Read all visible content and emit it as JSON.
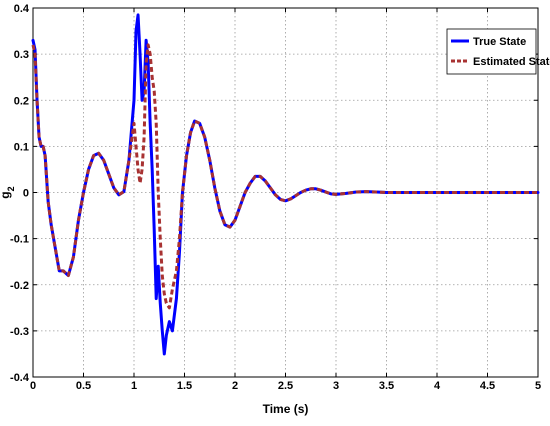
{
  "chart_data": {
    "type": "line",
    "title": "",
    "xlabel": "Time (s)",
    "ylabel": "g",
    "ylabel_subscript": "2",
    "xlim": [
      0,
      5
    ],
    "ylim": [
      -0.4,
      0.4
    ],
    "xticks": [
      "0",
      "0.5",
      "1",
      "1.5",
      "2",
      "2.5",
      "3",
      "3.5",
      "4",
      "4.5",
      "5"
    ],
    "xtick_values": [
      0,
      0.5,
      1,
      1.5,
      2,
      2.5,
      3,
      3.5,
      4,
      4.5,
      5
    ],
    "yticks": [
      "0.4",
      "0.3",
      "0.2",
      "0.1",
      "0",
      "-0.1",
      "-0.2",
      "-0.3",
      "-0.4"
    ],
    "ytick_values": [
      0.4,
      0.3,
      0.2,
      0.1,
      0,
      -0.1,
      -0.2,
      -0.3,
      -0.4
    ],
    "grid": true,
    "legend_position": "top-right",
    "series": [
      {
        "name": "True State",
        "color": "#0000ff",
        "style": "solid",
        "x": [
          0,
          0.02,
          0.04,
          0.06,
          0.08,
          0.1,
          0.12,
          0.15,
          0.18,
          0.22,
          0.26,
          0.3,
          0.35,
          0.4,
          0.45,
          0.5,
          0.55,
          0.6,
          0.65,
          0.7,
          0.75,
          0.8,
          0.85,
          0.9,
          0.95,
          1.0,
          1.02,
          1.04,
          1.06,
          1.08,
          1.1,
          1.12,
          1.14,
          1.16,
          1.18,
          1.2,
          1.22,
          1.24,
          1.26,
          1.28,
          1.3,
          1.32,
          1.35,
          1.38,
          1.42,
          1.45,
          1.48,
          1.52,
          1.56,
          1.6,
          1.65,
          1.7,
          1.75,
          1.8,
          1.85,
          1.9,
          1.95,
          2.0,
          2.05,
          2.1,
          2.15,
          2.2,
          2.25,
          2.3,
          2.35,
          2.4,
          2.45,
          2.5,
          2.55,
          2.6,
          2.65,
          2.7,
          2.75,
          2.8,
          2.85,
          2.9,
          2.95,
          3.0,
          3.1,
          3.2,
          3.3,
          3.4,
          3.5,
          3.6,
          3.7,
          3.8,
          3.9,
          4.0,
          4.1,
          4.2,
          4.3,
          4.4,
          4.5,
          4.6,
          4.7,
          4.8,
          4.9,
          5.0
        ],
        "y": [
          0.33,
          0.31,
          0.2,
          0.12,
          0.1,
          0.1,
          0.08,
          -0.02,
          -0.07,
          -0.12,
          -0.17,
          -0.17,
          -0.18,
          -0.14,
          -0.06,
          0.0,
          0.05,
          0.08,
          0.085,
          0.07,
          0.04,
          0.01,
          -0.005,
          0.002,
          0.07,
          0.2,
          0.35,
          0.385,
          0.3,
          0.2,
          0.22,
          0.33,
          0.28,
          0.15,
          0.05,
          -0.08,
          -0.23,
          -0.16,
          -0.24,
          -0.3,
          -0.35,
          -0.31,
          -0.28,
          -0.3,
          -0.23,
          -0.13,
          0.0,
          0.08,
          0.13,
          0.155,
          0.15,
          0.12,
          0.07,
          0.01,
          -0.04,
          -0.07,
          -0.075,
          -0.06,
          -0.03,
          0.0,
          0.02,
          0.035,
          0.035,
          0.025,
          0.01,
          -0.005,
          -0.015,
          -0.018,
          -0.014,
          -0.007,
          0.0,
          0.005,
          0.008,
          0.008,
          0.005,
          0.001,
          -0.003,
          -0.004,
          -0.002,
          0.001,
          0.002,
          0.001,
          0.0,
          0.0,
          0.0,
          0.0,
          0.0,
          0.0,
          0.0,
          0.0,
          0.0,
          0.0,
          0.0,
          0.0,
          0.0,
          0.0,
          0.0,
          0.0
        ]
      },
      {
        "name": "Estimated State",
        "color": "#a83232",
        "style": "dashed",
        "x": [
          0,
          0.02,
          0.04,
          0.06,
          0.08,
          0.1,
          0.12,
          0.15,
          0.18,
          0.22,
          0.26,
          0.3,
          0.35,
          0.4,
          0.45,
          0.5,
          0.55,
          0.6,
          0.65,
          0.7,
          0.75,
          0.8,
          0.85,
          0.9,
          0.95,
          1.0,
          1.02,
          1.04,
          1.06,
          1.08,
          1.1,
          1.12,
          1.14,
          1.16,
          1.18,
          1.2,
          1.22,
          1.24,
          1.26,
          1.28,
          1.3,
          1.32,
          1.35,
          1.38,
          1.42,
          1.45,
          1.48,
          1.52,
          1.56,
          1.6,
          1.65,
          1.7,
          1.75,
          1.8,
          1.85,
          1.9,
          1.95,
          2.0,
          2.05,
          2.1,
          2.15,
          2.2,
          2.25,
          2.3,
          2.35,
          2.4,
          2.45,
          2.5,
          2.55,
          2.6,
          2.65,
          2.7,
          2.75,
          2.8,
          2.85,
          2.9,
          2.95,
          3.0,
          3.1,
          3.2,
          3.3,
          3.4,
          3.5,
          3.6,
          3.7,
          3.8,
          3.9,
          4.0,
          4.1,
          4.2,
          4.3,
          4.4,
          4.5,
          4.6,
          4.7,
          4.8,
          4.9,
          5.0
        ],
        "y": [
          0.32,
          0.3,
          0.2,
          0.12,
          0.1,
          0.1,
          0.08,
          -0.02,
          -0.07,
          -0.12,
          -0.17,
          -0.17,
          -0.18,
          -0.14,
          -0.06,
          0.0,
          0.05,
          0.08,
          0.085,
          0.07,
          0.04,
          0.01,
          -0.005,
          0.002,
          0.07,
          0.15,
          0.1,
          0.05,
          0.02,
          0.05,
          0.12,
          0.28,
          0.32,
          0.3,
          0.25,
          0.22,
          0.15,
          0.0,
          -0.1,
          -0.18,
          -0.22,
          -0.24,
          -0.25,
          -0.21,
          -0.17,
          -0.1,
          0.0,
          0.08,
          0.13,
          0.155,
          0.15,
          0.12,
          0.07,
          0.01,
          -0.04,
          -0.07,
          -0.075,
          -0.06,
          -0.03,
          0.0,
          0.02,
          0.035,
          0.035,
          0.025,
          0.01,
          -0.005,
          -0.015,
          -0.018,
          -0.014,
          -0.007,
          0.0,
          0.005,
          0.008,
          0.008,
          0.005,
          0.001,
          -0.003,
          -0.004,
          -0.002,
          0.001,
          0.002,
          0.001,
          0.0,
          0.0,
          0.0,
          0.0,
          0.0,
          0.0,
          0.0,
          0.0,
          0.0,
          0.0,
          0.0,
          0.0,
          0.0,
          0.0,
          0.0,
          0.0
        ]
      }
    ]
  }
}
